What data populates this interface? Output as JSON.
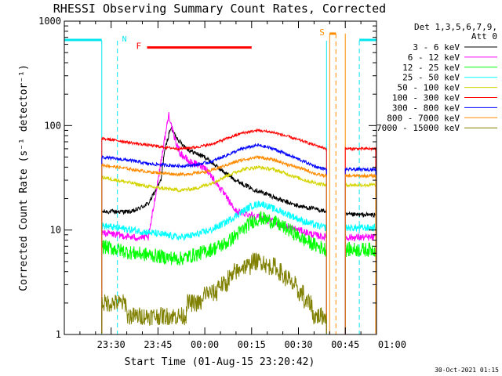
{
  "chart_data": {
    "type": "line",
    "title": "RHESSI Observing Summary Count Rates, Corrected",
    "xlabel": "Start Time (01-Aug-15 23:20:42)",
    "ylabel": "Corrected Count Rate (s⁻¹ detector⁻¹)",
    "yscale": "log",
    "ylim": [
      1,
      1000
    ],
    "xlim_minutes": [
      -5,
      95
    ],
    "x_ticks": [
      {
        "m": 10,
        "label": "23:30"
      },
      {
        "m": 25,
        "label": "23:45"
      },
      {
        "m": 40,
        "label": "00:00"
      },
      {
        "m": 55,
        "label": "00:15"
      },
      {
        "m": 70,
        "label": "00:30"
      },
      {
        "m": 85,
        "label": "00:45"
      },
      {
        "m": 100,
        "label": "01:00"
      }
    ],
    "y_ticks": [
      {
        "v": 1,
        "label": "1"
      },
      {
        "v": 10,
        "label": "10"
      },
      {
        "v": 100,
        "label": "100"
      },
      {
        "v": 1000,
        "label": "1000"
      }
    ],
    "legend": {
      "placement": "right",
      "header": [
        "Det 1,3,5,6,7,9,",
        "Att 0"
      ],
      "entries": [
        {
          "label": "3 - 6 keV",
          "color": "#000000"
        },
        {
          "label": "6 - 12 keV",
          "color": "#ff00ff"
        },
        {
          "label": "12 - 25 keV",
          "color": "#00ff00"
        },
        {
          "label": "25 - 50 keV",
          "color": "#00ffff"
        },
        {
          "label": "50 - 100 keV",
          "color": "#d4d400"
        },
        {
          "label": "100 - 300 keV",
          "color": "#ff0000"
        },
        {
          "label": "300 - 800 keV",
          "color": "#0000ff"
        },
        {
          "label": "800 - 7000 keV",
          "color": "#ff8c00"
        },
        {
          "label": "7000 - 15000 keV",
          "color": "#808000"
        }
      ]
    },
    "annotations": {
      "night_label": "N",
      "night_color": "#00e5ee",
      "night_segments": [
        [
          -5,
          7
        ],
        [
          89.5,
          95
        ]
      ],
      "night_dashed_x": [
        12,
        89.5
      ],
      "night_solid_x": [
        7,
        79
      ],
      "flare_label": "F",
      "flare_color": "#ff0000",
      "flare_segment": [
        21.5,
        55
      ],
      "saa_label": "S",
      "saa_color": "#ff8c00",
      "saa_segment": [
        80,
        82
      ],
      "saa_solid_x": [
        80,
        85
      ],
      "saa_dashed_x": [
        82
      ]
    },
    "data_windows": [
      [
        7,
        79
      ],
      [
        85,
        96
      ]
    ],
    "series": [
      {
        "name": "3 - 6 keV",
        "color": "#000000",
        "x": [
          7,
          12,
          17,
          22,
          26,
          27,
          29,
          32,
          35,
          40,
          45,
          50,
          55,
          60,
          65,
          70,
          75,
          79,
          85,
          90,
          95
        ],
        "y": [
          15,
          15,
          15,
          18,
          30,
          55,
          95,
          70,
          58,
          50,
          38,
          30,
          25,
          22,
          19,
          17,
          16,
          15,
          14,
          14,
          14
        ]
      },
      {
        "name": "6 - 12 keV",
        "color": "#ff00ff",
        "x": [
          7,
          12,
          17,
          22,
          25,
          27,
          28.5,
          30,
          32,
          35,
          40,
          45,
          50,
          55,
          60,
          65,
          70,
          75,
          79,
          85,
          90,
          95
        ],
        "y": [
          9.5,
          9,
          8.5,
          8.5,
          30,
          70,
          130,
          80,
          55,
          45,
          40,
          25,
          15,
          14,
          12.5,
          11,
          10,
          9,
          8.5,
          8.5,
          8.5,
          8.5
        ]
      },
      {
        "name": "12 - 25 keV",
        "color": "#00ff00",
        "x": [
          7,
          12,
          17,
          22,
          27,
          32,
          37,
          42,
          47,
          52,
          55,
          58,
          62,
          67,
          72,
          76,
          79,
          85,
          90,
          95
        ],
        "y": [
          7,
          6.5,
          6,
          5.8,
          5.5,
          5.3,
          5.8,
          6.5,
          7.5,
          10,
          12,
          13,
          12,
          10,
          8,
          7,
          6.5,
          6.5,
          6.5,
          6.5
        ]
      },
      {
        "name": "25 - 50 keV",
        "color": "#00ffff",
        "x": [
          7,
          12,
          17,
          22,
          27,
          32,
          37,
          42,
          47,
          52,
          55,
          58,
          62,
          67,
          72,
          76,
          79,
          85,
          90,
          95
        ],
        "y": [
          11,
          10.5,
          10,
          9.5,
          9,
          8.5,
          9,
          10,
          12,
          15,
          17,
          18,
          16,
          14,
          12,
          11,
          10.5,
          10.5,
          10.5,
          10.5
        ]
      },
      {
        "name": "50 - 100 keV",
        "color": "#d4d400",
        "x": [
          7,
          12,
          17,
          22,
          27,
          32,
          37,
          42,
          47,
          52,
          57,
          62,
          67,
          72,
          76,
          79,
          85,
          90,
          95
        ],
        "y": [
          32,
          30,
          28,
          26,
          25,
          24,
          25,
          28,
          33,
          38,
          40,
          38,
          34,
          30,
          28,
          27,
          27,
          27,
          27
        ]
      },
      {
        "name": "100 - 300 keV",
        "color": "#ff0000",
        "x": [
          7,
          12,
          17,
          22,
          27,
          32,
          37,
          42,
          47,
          52,
          57,
          62,
          67,
          72,
          76,
          79,
          85,
          90,
          95
        ],
        "y": [
          75,
          72,
          68,
          65,
          62,
          60,
          62,
          66,
          75,
          85,
          90,
          86,
          78,
          70,
          64,
          60,
          60,
          60,
          60
        ]
      },
      {
        "name": "300 - 800 keV",
        "color": "#0000ff",
        "x": [
          7,
          12,
          17,
          22,
          27,
          32,
          37,
          42,
          47,
          52,
          57,
          62,
          67,
          72,
          76,
          79,
          85,
          90,
          95
        ],
        "y": [
          50,
          48,
          46,
          43,
          42,
          41,
          42,
          45,
          52,
          60,
          65,
          60,
          52,
          45,
          40,
          38,
          38,
          38,
          38
        ]
      },
      {
        "name": "800 - 7000 keV",
        "color": "#ff8c00",
        "x": [
          7,
          12,
          17,
          22,
          27,
          32,
          37,
          42,
          47,
          52,
          57,
          62,
          67,
          72,
          76,
          79,
          85,
          90,
          95
        ],
        "y": [
          42,
          40,
          38,
          36,
          35,
          34,
          35,
          37,
          42,
          47,
          50,
          47,
          42,
          38,
          34,
          33,
          33,
          33,
          33
        ]
      },
      {
        "name": "7000 - 15000 keV",
        "color": "#808000",
        "x": [
          7,
          12,
          17,
          22,
          27,
          32,
          37,
          42,
          47,
          52,
          57,
          62,
          67,
          72,
          76,
          79
        ],
        "y": [
          2.2,
          2,
          1.6,
          1.4,
          1.4,
          1.6,
          2,
          2.5,
          3.2,
          4.5,
          5,
          4.5,
          3.3,
          2.2,
          1.5,
          1.3
        ]
      }
    ]
  },
  "footer_timestamp": "30-Oct-2021 01:15"
}
